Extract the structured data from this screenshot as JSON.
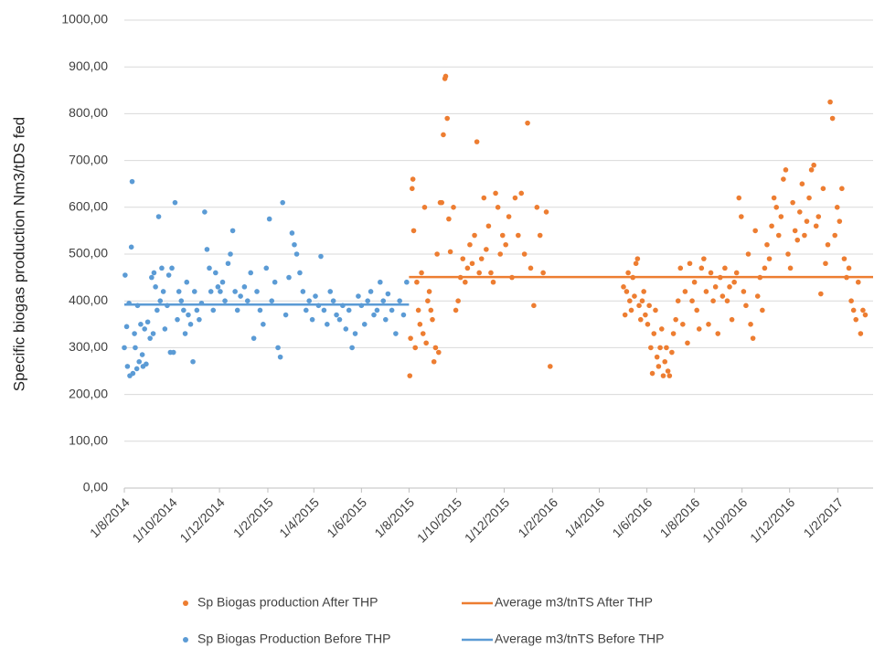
{
  "chart_data": {
    "type": "scatter",
    "y_label": "Specific biogas production Nm3/tDS fed",
    "xlim": [
      "2014-08-01",
      "2017-03-18"
    ],
    "ylim": [
      0,
      1000
    ],
    "yticks": [
      {
        "value": 0,
        "label": "0,00"
      },
      {
        "value": 100,
        "label": "100,00"
      },
      {
        "value": 200,
        "label": "200,00"
      },
      {
        "value": 300,
        "label": "300,00"
      },
      {
        "value": 400,
        "label": "400,00"
      },
      {
        "value": 500,
        "label": "500,00"
      },
      {
        "value": 600,
        "label": "600,00"
      },
      {
        "value": 700,
        "label": "700,00"
      },
      {
        "value": 800,
        "label": "800,00"
      },
      {
        "value": 900,
        "label": "900,00"
      },
      {
        "value": 1000,
        "label": "1000,00"
      }
    ],
    "xticks": [
      {
        "value": "2014-08-01",
        "label": "1/8/2014"
      },
      {
        "value": "2014-10-01",
        "label": "1/10/2014"
      },
      {
        "value": "2014-12-01",
        "label": "1/12/2014"
      },
      {
        "value": "2015-02-01",
        "label": "1/2/2015"
      },
      {
        "value": "2015-04-01",
        "label": "1/4/2015"
      },
      {
        "value": "2015-06-01",
        "label": "1/6/2015"
      },
      {
        "value": "2015-08-01",
        "label": "1/8/2015"
      },
      {
        "value": "2015-10-01",
        "label": "1/10/2015"
      },
      {
        "value": "2015-12-01",
        "label": "1/12/2015"
      },
      {
        "value": "2016-02-01",
        "label": "1/2/2016"
      },
      {
        "value": "2016-04-01",
        "label": "1/4/2016"
      },
      {
        "value": "2016-06-01",
        "label": "1/6/2016"
      },
      {
        "value": "2016-08-01",
        "label": "1/8/2016"
      },
      {
        "value": "2016-10-01",
        "label": "1/10/2016"
      },
      {
        "value": "2016-12-01",
        "label": "1/12/2016"
      },
      {
        "value": "2017-02-01",
        "label": "1/2/2017"
      }
    ],
    "grid": true,
    "series": [
      {
        "name": "Sp Biogas production After THP",
        "color": "#ed7d31",
        "type": "scatter",
        "x": [
          "2015-08-02",
          "2015-08-03",
          "2015-08-05",
          "2015-08-06",
          "2015-08-07",
          "2015-08-09",
          "2015-08-11",
          "2015-08-13",
          "2015-08-15",
          "2015-08-17",
          "2015-08-19",
          "2015-08-21",
          "2015-08-23",
          "2015-08-25",
          "2015-08-27",
          "2015-08-29",
          "2015-08-31",
          "2015-09-02",
          "2015-09-04",
          "2015-09-06",
          "2015-09-08",
          "2015-09-10",
          "2015-09-12",
          "2015-09-14",
          "2015-09-16",
          "2015-09-17",
          "2015-09-19",
          "2015-09-21",
          "2015-09-23",
          "2015-09-27",
          "2015-09-30",
          "2015-10-03",
          "2015-10-06",
          "2015-10-09",
          "2015-10-12",
          "2015-10-15",
          "2015-10-18",
          "2015-10-21",
          "2015-10-24",
          "2015-10-27",
          "2015-10-30",
          "2015-11-02",
          "2015-11-05",
          "2015-11-08",
          "2015-11-11",
          "2015-11-14",
          "2015-11-17",
          "2015-11-20",
          "2015-11-23",
          "2015-11-26",
          "2015-11-29",
          "2015-12-03",
          "2015-12-07",
          "2015-12-11",
          "2015-12-15",
          "2015-12-19",
          "2015-12-23",
          "2015-12-27",
          "2015-12-31",
          "2016-01-04",
          "2016-01-08",
          "2016-01-12",
          "2016-01-16",
          "2016-01-20",
          "2016-01-24",
          "2016-01-29",
          "2016-05-02",
          "2016-05-04",
          "2016-05-06",
          "2016-05-08",
          "2016-05-10",
          "2016-05-12",
          "2016-05-14",
          "2016-05-16",
          "2016-05-18",
          "2016-05-20",
          "2016-05-22",
          "2016-05-24",
          "2016-05-26",
          "2016-05-28",
          "2016-05-30",
          "2016-06-02",
          "2016-06-04",
          "2016-06-06",
          "2016-06-08",
          "2016-06-10",
          "2016-06-12",
          "2016-06-14",
          "2016-06-16",
          "2016-06-18",
          "2016-06-20",
          "2016-06-22",
          "2016-06-24",
          "2016-06-26",
          "2016-06-28",
          "2016-06-30",
          "2016-07-03",
          "2016-07-05",
          "2016-07-08",
          "2016-07-11",
          "2016-07-14",
          "2016-07-17",
          "2016-07-20",
          "2016-07-23",
          "2016-07-26",
          "2016-07-29",
          "2016-08-01",
          "2016-08-04",
          "2016-08-07",
          "2016-08-10",
          "2016-08-13",
          "2016-08-16",
          "2016-08-19",
          "2016-08-22",
          "2016-08-25",
          "2016-08-28",
          "2016-08-31",
          "2016-09-03",
          "2016-09-06",
          "2016-09-09",
          "2016-09-12",
          "2016-09-15",
          "2016-09-18",
          "2016-09-21",
          "2016-09-24",
          "2016-09-27",
          "2016-09-30",
          "2016-10-03",
          "2016-10-06",
          "2016-10-09",
          "2016-10-12",
          "2016-10-15",
          "2016-10-18",
          "2016-10-21",
          "2016-10-24",
          "2016-10-27",
          "2016-10-30",
          "2016-11-02",
          "2016-11-05",
          "2016-11-08",
          "2016-11-11",
          "2016-11-14",
          "2016-11-17",
          "2016-11-20",
          "2016-11-23",
          "2016-11-26",
          "2016-11-29",
          "2016-12-02",
          "2016-12-05",
          "2016-12-08",
          "2016-12-11",
          "2016-12-14",
          "2016-12-17",
          "2016-12-20",
          "2016-12-23",
          "2016-12-26",
          "2016-12-29",
          "2017-01-01",
          "2017-01-04",
          "2017-01-07",
          "2017-01-10",
          "2017-01-13",
          "2017-01-16",
          "2017-01-19",
          "2017-01-22",
          "2017-01-25",
          "2017-01-28",
          "2017-01-31",
          "2017-02-03",
          "2017-02-06",
          "2017-02-09",
          "2017-02-12",
          "2017-02-15",
          "2017-02-18",
          "2017-02-21",
          "2017-02-24",
          "2017-02-27",
          "2017-03-02",
          "2017-03-05",
          "2017-03-08"
        ],
        "values": [
          240,
          320,
          640,
          660,
          550,
          300,
          440,
          380,
          350,
          460,
          330,
          600,
          310,
          400,
          420,
          380,
          360,
          270,
          300,
          500,
          290,
          610,
          610,
          755,
          875,
          880,
          790,
          575,
          505,
          600,
          380,
          400,
          450,
          490,
          440,
          470,
          520,
          480,
          540,
          740,
          460,
          490,
          620,
          510,
          560,
          460,
          440,
          630,
          600,
          500,
          540,
          520,
          580,
          450,
          620,
          540,
          630,
          500,
          780,
          470,
          390,
          600,
          540,
          460,
          590,
          260,
          430,
          370,
          420,
          460,
          400,
          380,
          450,
          410,
          480,
          490,
          390,
          360,
          400,
          420,
          370,
          350,
          390,
          300,
          245,
          330,
          380,
          280,
          260,
          300,
          340,
          240,
          270,
          300,
          250,
          240,
          290,
          330,
          360,
          400,
          470,
          350,
          420,
          310,
          480,
          400,
          440,
          380,
          340,
          470,
          490,
          420,
          350,
          460,
          400,
          430,
          330,
          450,
          410,
          470,
          400,
          430,
          360,
          440,
          460,
          620,
          580,
          420,
          390,
          500,
          350,
          320,
          550,
          410,
          450,
          380,
          470,
          520,
          490,
          560,
          620,
          600,
          540,
          580,
          660,
          680,
          500,
          470,
          610,
          550,
          530,
          590,
          650,
          540,
          570,
          620,
          680,
          690,
          560,
          580,
          415,
          640,
          480,
          520,
          825,
          790,
          540,
          600,
          570,
          640,
          490,
          450,
          470,
          400,
          380,
          360,
          440,
          330,
          380,
          370
        ]
      },
      {
        "name": "Average m3/tnTS After THP",
        "color": "#ed7d31",
        "type": "line",
        "x": [
          "2015-08-01",
          "2017-03-18"
        ],
        "values": [
          451,
          451
        ]
      },
      {
        "name": "Sp Biogas Production Before THP",
        "color": "#5b9bd5",
        "type": "scatter",
        "x": [
          "2014-08-01",
          "2014-08-02",
          "2014-08-04",
          "2014-08-05",
          "2014-08-07",
          "2014-08-08",
          "2014-08-10",
          "2014-08-11",
          "2014-08-12",
          "2014-08-14",
          "2014-08-15",
          "2014-08-17",
          "2014-08-18",
          "2014-08-20",
          "2014-08-22",
          "2014-08-24",
          "2014-08-25",
          "2014-08-27",
          "2014-08-29",
          "2014-08-31",
          "2014-09-03",
          "2014-09-05",
          "2014-09-07",
          "2014-09-08",
          "2014-09-10",
          "2014-09-12",
          "2014-09-14",
          "2014-09-16",
          "2014-09-18",
          "2014-09-20",
          "2014-09-22",
          "2014-09-25",
          "2014-09-27",
          "2014-09-29",
          "2014-10-01",
          "2014-10-03",
          "2014-10-05",
          "2014-10-08",
          "2014-10-10",
          "2014-10-13",
          "2014-10-16",
          "2014-10-18",
          "2014-10-20",
          "2014-10-22",
          "2014-10-25",
          "2014-10-28",
          "2014-10-30",
          "2014-11-02",
          "2014-11-05",
          "2014-11-08",
          "2014-11-12",
          "2014-11-15",
          "2014-11-18",
          "2014-11-20",
          "2014-11-23",
          "2014-11-26",
          "2014-11-29",
          "2014-12-02",
          "2014-12-05",
          "2014-12-08",
          "2014-12-12",
          "2014-12-15",
          "2014-12-18",
          "2014-12-21",
          "2014-12-24",
          "2014-12-28",
          "2015-01-02",
          "2015-01-06",
          "2015-01-10",
          "2015-01-14",
          "2015-01-18",
          "2015-01-22",
          "2015-01-26",
          "2015-01-30",
          "2015-02-03",
          "2015-02-06",
          "2015-02-10",
          "2015-02-14",
          "2015-02-17",
          "2015-02-20",
          "2015-02-24",
          "2015-02-28",
          "2015-03-04",
          "2015-03-07",
          "2015-03-10",
          "2015-03-14",
          "2015-03-18",
          "2015-03-22",
          "2015-03-26",
          "2015-03-30",
          "2015-04-03",
          "2015-04-07",
          "2015-04-10",
          "2015-04-14",
          "2015-04-18",
          "2015-04-22",
          "2015-04-26",
          "2015-04-30",
          "2015-05-04",
          "2015-05-08",
          "2015-05-12",
          "2015-05-16",
          "2015-05-20",
          "2015-05-24",
          "2015-05-28",
          "2015-06-01",
          "2015-06-05",
          "2015-06-09",
          "2015-06-13",
          "2015-06-17",
          "2015-06-21",
          "2015-06-25",
          "2015-06-29",
          "2015-07-02",
          "2015-07-05",
          "2015-07-10",
          "2015-07-15",
          "2015-07-20",
          "2015-07-25",
          "2015-07-29"
        ],
        "values": [
          300,
          455,
          345,
          260,
          395,
          240,
          515,
          655,
          245,
          330,
          300,
          255,
          390,
          270,
          350,
          285,
          260,
          340,
          265,
          355,
          320,
          450,
          330,
          460,
          430,
          380,
          580,
          400,
          470,
          420,
          340,
          390,
          455,
          290,
          470,
          290,
          610,
          360,
          420,
          400,
          380,
          330,
          440,
          370,
          350,
          270,
          420,
          380,
          360,
          395,
          590,
          510,
          470,
          420,
          380,
          460,
          430,
          420,
          440,
          400,
          480,
          500,
          550,
          420,
          380,
          410,
          430,
          400,
          460,
          320,
          420,
          380,
          350,
          470,
          575,
          400,
          440,
          300,
          280,
          610,
          370,
          450,
          545,
          520,
          500,
          460,
          420,
          380,
          400,
          360,
          410,
          390,
          495,
          380,
          350,
          420,
          400,
          370,
          360,
          390,
          340,
          380,
          300,
          330,
          410,
          390,
          350,
          400,
          420,
          370,
          380,
          440,
          400,
          360,
          415,
          380,
          330,
          400,
          370,
          440
        ]
      },
      {
        "name": "Average m3/tnTS Before THP",
        "color": "#5b9bd5",
        "type": "line",
        "x": [
          "2014-08-01",
          "2015-08-01"
        ],
        "values": [
          392,
          392
        ]
      }
    ]
  }
}
